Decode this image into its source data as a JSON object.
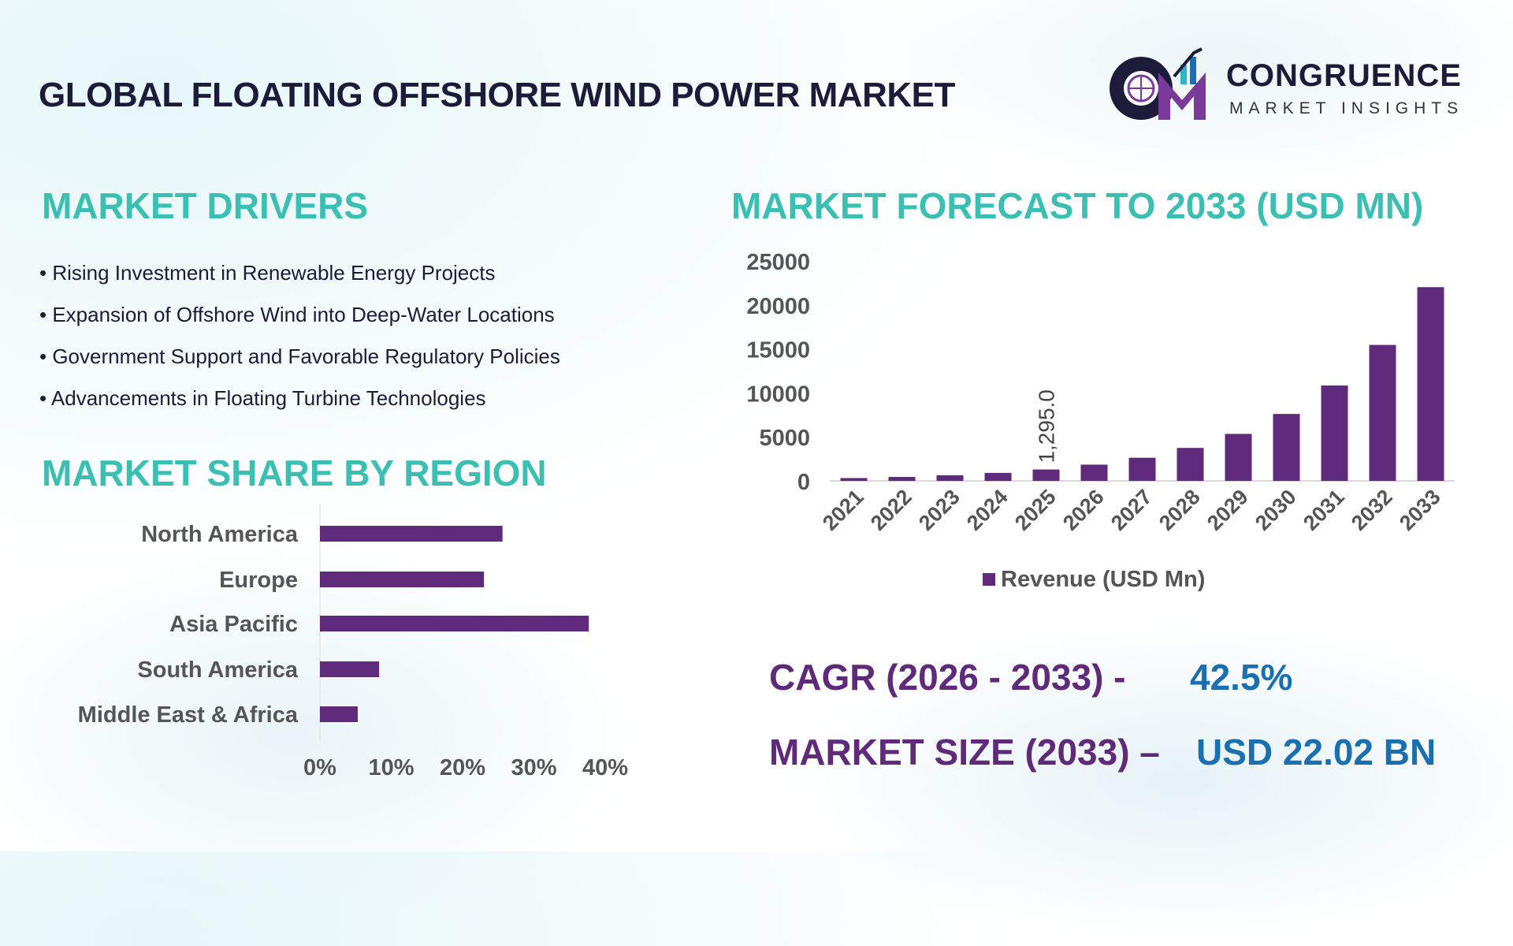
{
  "header": {
    "title": "GLOBAL FLOATING OFFSHORE WIND POWER MARKET"
  },
  "logo": {
    "name": "CONGRUENCE",
    "tagline": "MARKET INSIGHTS",
    "monogram": "CM"
  },
  "drivers": {
    "heading": "MARKET DRIVERS",
    "items": [
      "• Rising Investment in Renewable Energy Projects",
      "• Expansion of Offshore Wind into Deep-Water Locations",
      "• Government Support and Favorable Regulatory Policies",
      "• Advancements in Floating Turbine Technologies"
    ]
  },
  "region": {
    "heading": "MARKET SHARE BY REGION"
  },
  "forecast": {
    "heading": "MARKET FORECAST TO 2033 (USD MN)"
  },
  "stats": {
    "cagr_label": "CAGR (2026 - 2033) -",
    "cagr_value": "42.5%",
    "size_label": "MARKET SIZE (2033) –",
    "size_value": "USD 22.02 BN"
  },
  "colors": {
    "bar": "#5f2a7a",
    "heading": "#3bbfb3",
    "title": "#1d1b3a",
    "stat_value": "#1a6fb0"
  },
  "chart_data": [
    {
      "type": "bar",
      "orientation": "horizontal",
      "categories": [
        "North America",
        "Europe",
        "Asia Pacific",
        "South America",
        "Middle East & Africa"
      ],
      "values": [
        25.6,
        23,
        37.7,
        8.3,
        5.3
      ],
      "xlim": [
        0,
        40
      ],
      "xticks": [
        "0%",
        "10%",
        "20%",
        "30%",
        "40%"
      ],
      "grid": false
    },
    {
      "type": "bar",
      "orientation": "vertical",
      "categories": [
        "2021",
        "2022",
        "2023",
        "2024",
        "2025",
        "2026",
        "2027",
        "2028",
        "2029",
        "2030",
        "2031",
        "2032",
        "2033"
      ],
      "series": [
        {
          "name": "Revenue (USD Mn)",
          "values": [
            320,
            450,
            640,
            910,
            1295,
            1845,
            2630,
            3748,
            5340,
            7610,
            10844,
            15453,
            22020
          ]
        }
      ],
      "data_labels": [
        {
          "category": "2025",
          "text": "1,295.0"
        }
      ],
      "ylim": [
        0,
        25000
      ],
      "yticks": [
        "0",
        "5000",
        "10000",
        "15000",
        "20000",
        "25000"
      ],
      "legend": "bottom",
      "grid": false
    }
  ]
}
